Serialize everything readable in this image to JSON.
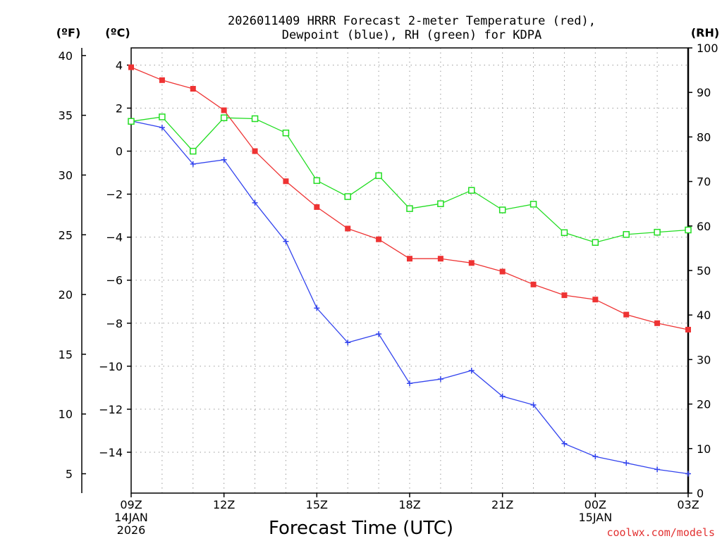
{
  "chart_data": {
    "type": "line",
    "title_line1": "2026011409 HRRR Forecast 2-meter Temperature (red),",
    "title_line2": "Dewpoint (blue), RH (green) for KDPA",
    "xlabel": "Forecast Time (UTC)",
    "watermark": "coolwx.com/models",
    "unit_labels": {
      "fahrenheit": "(ºF)",
      "celsius": "(ºC)",
      "rh": "(RH)"
    },
    "x_hours": [
      0,
      1,
      2,
      3,
      4,
      5,
      6,
      7,
      8,
      9,
      10,
      11,
      12,
      13,
      14,
      15,
      16,
      17,
      18
    ],
    "x_ticks": [
      {
        "hour": 0,
        "lines": [
          "09Z",
          "14JAN",
          "2026"
        ]
      },
      {
        "hour": 3,
        "lines": [
          "12Z"
        ]
      },
      {
        "hour": 6,
        "lines": [
          "15Z"
        ]
      },
      {
        "hour": 9,
        "lines": [
          "18Z"
        ]
      },
      {
        "hour": 12,
        "lines": [
          "21Z"
        ]
      },
      {
        "hour": 15,
        "lines": [
          "00Z",
          "15JAN"
        ]
      },
      {
        "hour": 18,
        "lines": [
          "03Z"
        ]
      }
    ],
    "celsius_range": [
      -15.9,
      4.8
    ],
    "celsius_ticks": [
      4,
      2,
      0,
      -2,
      -4,
      -6,
      -8,
      -10,
      -12,
      -14
    ],
    "fahrenheit_ticks": [
      40,
      35,
      30,
      25,
      20,
      15,
      10,
      5
    ],
    "rh_range": [
      0,
      100
    ],
    "rh_ticks": [
      100,
      90,
      80,
      70,
      60,
      50,
      40,
      30,
      20,
      10,
      0
    ],
    "grid": true,
    "series": [
      {
        "name": "Temperature",
        "axis": "celsius",
        "color": "#ee3333",
        "marker": "filled-square",
        "values": [
          3.9,
          3.3,
          2.9,
          1.9,
          0.0,
          -1.4,
          -2.6,
          -3.6,
          -4.1,
          -5.0,
          -5.0,
          -5.2,
          -5.6,
          -6.2,
          -6.7,
          -6.9,
          -7.6,
          -8.0,
          -8.3
        ]
      },
      {
        "name": "Dewpoint",
        "axis": "celsius",
        "color": "#3344ee",
        "marker": "plus",
        "values": [
          1.4,
          1.1,
          -0.6,
          -0.4,
          -2.4,
          -4.2,
          -7.3,
          -8.9,
          -8.5,
          -10.8,
          -10.6,
          -10.2,
          -11.4,
          -11.8,
          -13.6,
          -14.2,
          -14.5,
          -14.8,
          -15.0
        ]
      },
      {
        "name": "RH",
        "axis": "rh",
        "color": "#22dd22",
        "marker": "open-square",
        "values": [
          83.5,
          84.5,
          76.8,
          84.3,
          84.1,
          80.9,
          70.2,
          66.6,
          71.3,
          63.9,
          65.0,
          68.0,
          63.6,
          64.9,
          58.5,
          56.3,
          58.1,
          58.6,
          59.1
        ]
      }
    ]
  }
}
